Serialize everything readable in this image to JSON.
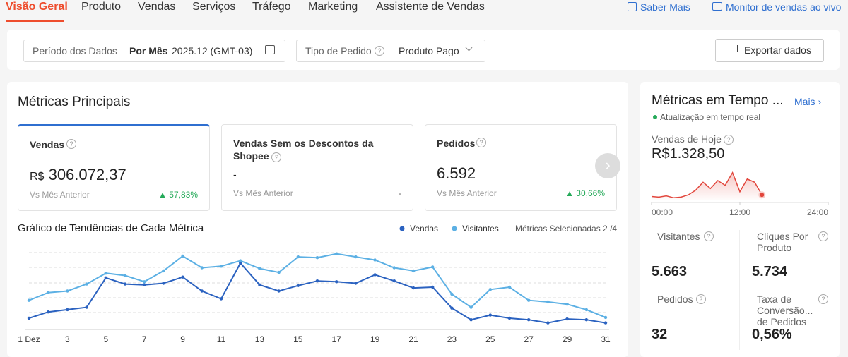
{
  "nav": {
    "tabs": [
      "Visão Geral",
      "Produto",
      "Vendas",
      "Serviços",
      "Tráfego",
      "Marketing",
      "Assistente de Vendas"
    ],
    "links": [
      "Saber Mais",
      "Monitor de vendas ao vivo"
    ]
  },
  "filters": {
    "period_label": "Período dos Dados",
    "period_mode": "Por Mês",
    "period_value": "2025.12 (GMT-03)",
    "order_type_label": "Tipo de Pedido",
    "order_type_value": "Produto Pago",
    "export": "Exportar dados"
  },
  "main": {
    "title": "Métricas Principais",
    "cards": [
      {
        "title": "Vendas",
        "currency": "R$",
        "value": "306.072,37",
        "compare": "Vs Mês Anterior",
        "change": "57,83%"
      },
      {
        "title": "Vendas Sem os Descontos da Shopee",
        "value": "-",
        "compare": "Vs Mês Anterior",
        "change": "-"
      },
      {
        "title": "Pedidos",
        "value": "6.592",
        "compare": "Vs Mês Anterior",
        "change": "30,66%"
      }
    ]
  },
  "realtime": {
    "title": "Métricas em Tempo ...",
    "more": "Mais",
    "status": "Atualização em tempo real",
    "today_label": "Vendas de Hoje",
    "today_value": "R$1.328,50",
    "metrics": [
      {
        "label": "Visitantes",
        "value": "5.663"
      },
      {
        "label": "Cliques Por Produto",
        "value": "5.734"
      },
      {
        "label": "Pedidos",
        "value": "32"
      },
      {
        "label": "Taxa de Conversão... de Pedidos",
        "value": "0,56%"
      }
    ]
  },
  "chart_data": [
    {
      "type": "line",
      "title": "Gráfico de Tendências de Cada Métrica",
      "note": "Métricas Selecionadas 2 /4",
      "grid": true,
      "categories": [
        "1 Dez",
        null,
        "3",
        null,
        "5",
        null,
        "7",
        null,
        "9",
        null,
        "11",
        null,
        "13",
        null,
        "15",
        null,
        "17",
        null,
        "19",
        null,
        "21",
        null,
        "23",
        null,
        "25",
        null,
        "27",
        null,
        "29",
        null,
        "31"
      ],
      "ylim": [
        0,
        100
      ],
      "series": [
        {
          "name": "Vendas",
          "color": "#2b62c0",
          "values": [
            10,
            18,
            21,
            24,
            62,
            54,
            53,
            55,
            63,
            45,
            35,
            81,
            53,
            45,
            52,
            58,
            57,
            55,
            66,
            58,
            49,
            50,
            23,
            8,
            14,
            10,
            8,
            4,
            9,
            8,
            4
          ]
        },
        {
          "name": "Visitantes",
          "color": "#5cb0e4",
          "values": [
            33,
            43,
            45,
            54,
            68,
            65,
            57,
            71,
            90,
            75,
            77,
            84,
            74,
            69,
            89,
            88,
            93,
            89,
            85,
            75,
            71,
            76,
            41,
            24,
            47,
            50,
            33,
            31,
            28,
            21,
            11
          ]
        }
      ]
    },
    {
      "type": "area",
      "color": "#e2463c",
      "x": [
        0,
        1,
        2,
        3,
        4,
        5,
        6,
        7,
        8,
        9,
        10,
        11,
        12,
        13,
        14,
        15
      ],
      "values": [
        10,
        8,
        12,
        6,
        8,
        15,
        30,
        55,
        35,
        60,
        45,
        85,
        25,
        65,
        55,
        15
      ],
      "xlim": [
        0,
        24
      ],
      "ylim": [
        0,
        100
      ],
      "xticks": [
        {
          "value": 0,
          "label": "00:00"
        },
        {
          "value": 12,
          "label": "12:00"
        },
        {
          "value": 24,
          "label": "24:00"
        }
      ]
    }
  ]
}
